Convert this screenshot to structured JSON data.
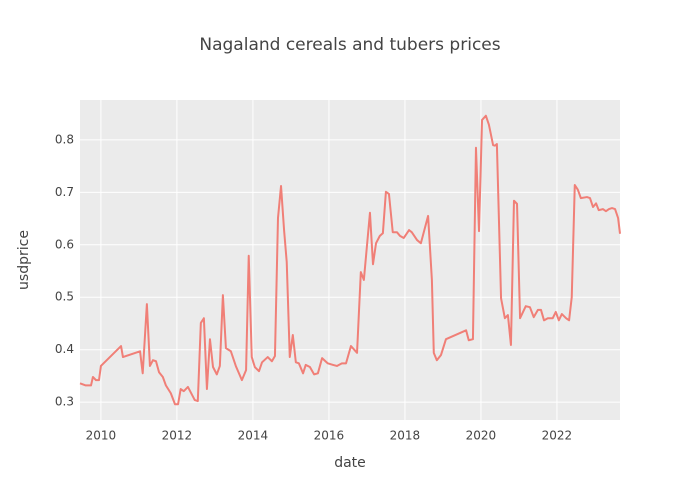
{
  "chart_data": {
    "type": "line",
    "title": "Nagaland cereals and tubers prices",
    "x_label": "date",
    "y_label": "usdprice",
    "xlim": [
      2009.45,
      2023.66
    ],
    "ylim": [
      0.266,
      0.876
    ],
    "xticks": [
      2010,
      2012,
      2014,
      2016,
      2018,
      2020,
      2022
    ],
    "yticks": [
      0.3,
      0.4,
      0.5,
      0.6,
      0.7,
      0.8
    ],
    "grid": true,
    "series": [
      {
        "name": "usdprice",
        "color": "#f07f77",
        "x": [
          2009.45,
          2009.6,
          2009.74,
          2009.79,
          2009.87,
          2009.95,
          2010.0,
          2010.53,
          2010.58,
          2011.03,
          2011.1,
          2011.21,
          2011.29,
          2011.37,
          2011.45,
          2011.53,
          2011.63,
          2011.71,
          2011.84,
          2011.95,
          2012.03,
          2012.1,
          2012.18,
          2012.29,
          2012.47,
          2012.55,
          2012.63,
          2012.71,
          2012.79,
          2012.87,
          2012.95,
          2013.05,
          2013.13,
          2013.21,
          2013.29,
          2013.42,
          2013.55,
          2013.71,
          2013.82,
          2013.89,
          2013.97,
          2014.05,
          2014.16,
          2014.24,
          2014.39,
          2014.5,
          2014.58,
          2014.66,
          2014.74,
          2014.82,
          2014.89,
          2014.97,
          2015.05,
          2015.13,
          2015.21,
          2015.32,
          2015.39,
          2015.5,
          2015.61,
          2015.71,
          2015.82,
          2015.97,
          2016.11,
          2016.21,
          2016.34,
          2016.45,
          2016.58,
          2016.74,
          2016.84,
          2016.92,
          2017.08,
          2017.16,
          2017.24,
          2017.34,
          2017.42,
          2017.5,
          2017.58,
          2017.68,
          2017.79,
          2017.87,
          2017.97,
          2018.11,
          2018.18,
          2018.32,
          2018.42,
          2018.61,
          2018.71,
          2018.76,
          2018.84,
          2018.95,
          2019.08,
          2019.61,
          2019.68,
          2019.79,
          2019.87,
          2019.95,
          2020.03,
          2020.13,
          2020.21,
          2020.32,
          2020.37,
          2020.42,
          2020.53,
          2020.63,
          2020.71,
          2020.79,
          2020.87,
          2020.95,
          2021.03,
          2021.18,
          2021.29,
          2021.39,
          2021.5,
          2021.58,
          2021.66,
          2021.76,
          2021.89,
          2021.97,
          2022.05,
          2022.13,
          2022.24,
          2022.32,
          2022.39,
          2022.47,
          2022.55,
          2022.63,
          2022.79,
          2022.87,
          2022.95,
          2023.03,
          2023.1,
          2023.21,
          2023.29,
          2023.37,
          2023.45,
          2023.53,
          2023.61,
          2023.66
        ],
        "values": [
          0.336,
          0.332,
          0.332,
          0.348,
          0.342,
          0.342,
          0.369,
          0.407,
          0.386,
          0.397,
          0.355,
          0.487,
          0.369,
          0.38,
          0.378,
          0.357,
          0.348,
          0.332,
          0.317,
          0.296,
          0.296,
          0.325,
          0.321,
          0.329,
          0.304,
          0.302,
          0.451,
          0.46,
          0.325,
          0.42,
          0.367,
          0.353,
          0.369,
          0.504,
          0.403,
          0.397,
          0.369,
          0.342,
          0.361,
          0.579,
          0.386,
          0.367,
          0.359,
          0.376,
          0.386,
          0.378,
          0.388,
          0.651,
          0.712,
          0.628,
          0.567,
          0.386,
          0.428,
          0.376,
          0.374,
          0.355,
          0.371,
          0.367,
          0.353,
          0.355,
          0.384,
          0.374,
          0.371,
          0.369,
          0.374,
          0.374,
          0.407,
          0.394,
          0.548,
          0.533,
          0.661,
          0.563,
          0.603,
          0.617,
          0.622,
          0.701,
          0.697,
          0.624,
          0.624,
          0.617,
          0.613,
          0.628,
          0.624,
          0.609,
          0.603,
          0.655,
          0.533,
          0.394,
          0.38,
          0.39,
          0.42,
          0.437,
          0.418,
          0.42,
          0.785,
          0.626,
          0.838,
          0.846,
          0.829,
          0.79,
          0.789,
          0.792,
          0.498,
          0.46,
          0.466,
          0.409,
          0.684,
          0.678,
          0.46,
          0.483,
          0.481,
          0.462,
          0.476,
          0.476,
          0.456,
          0.46,
          0.46,
          0.472,
          0.456,
          0.468,
          0.46,
          0.456,
          0.5,
          0.714,
          0.705,
          0.689,
          0.691,
          0.689,
          0.672,
          0.679,
          0.666,
          0.668,
          0.664,
          0.668,
          0.67,
          0.668,
          0.651,
          0.621
        ]
      }
    ]
  }
}
